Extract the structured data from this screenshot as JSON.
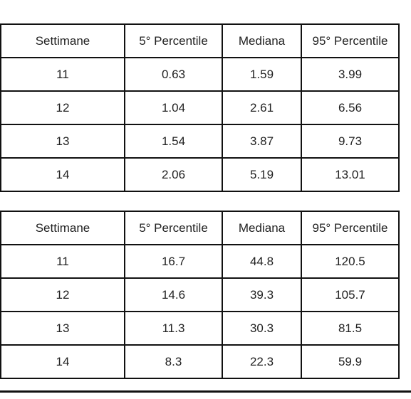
{
  "tables": [
    {
      "header": [
        "Settimane",
        "5° Percentile",
        "Mediana",
        "95° Percentile"
      ],
      "rows": [
        [
          "11",
          "0.63",
          "1.59",
          "3.99"
        ],
        [
          "12",
          "1.04",
          "2.61",
          "6.56"
        ],
        [
          "13",
          "1.54",
          "3.87",
          "9.73"
        ],
        [
          "14",
          "2.06",
          "5.19",
          "13.01"
        ]
      ]
    },
    {
      "header": [
        "Settimane",
        "5° Percentile",
        "Mediana",
        "95° Percentile"
      ],
      "rows": [
        [
          "11",
          "16.7",
          "44.8",
          "120.5"
        ],
        [
          "12",
          "14.6",
          "39.3",
          "105.7"
        ],
        [
          "13",
          "11.3",
          "30.3",
          "81.5"
        ],
        [
          "14",
          "8.3",
          "22.3",
          "59.9"
        ]
      ]
    }
  ]
}
